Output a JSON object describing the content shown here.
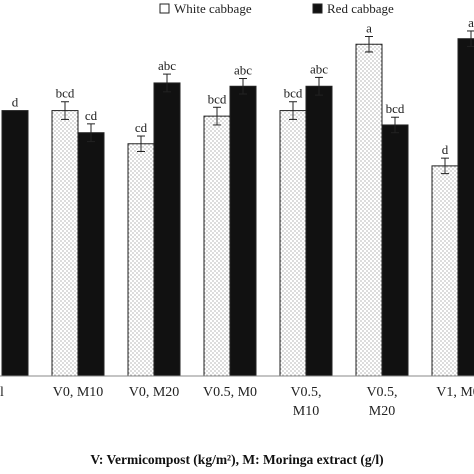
{
  "chart_data": {
    "type": "bar",
    "categories": [
      [
        "l"
      ],
      [
        "V0, M10"
      ],
      [
        "V0, M20"
      ],
      [
        "V0.5, M0"
      ],
      [
        "V0.5,",
        "M10"
      ],
      [
        "V0.5,",
        "M20"
      ],
      [
        "V1,   M0"
      ],
      [
        "V"
      ]
    ],
    "series": [
      {
        "name": "White cabbage",
        "values": [
          null,
          2.4,
          2.1,
          2.35,
          2.4,
          3.0,
          1.9,
          null
        ],
        "errors": [
          null,
          0.08,
          0.07,
          0.08,
          0.08,
          0.07,
          0.07,
          null
        ],
        "letters": [
          "",
          "bcd",
          "cd",
          "bcd",
          "bcd",
          "a",
          "d",
          ""
        ]
      },
      {
        "name": "Red cabbage",
        "values": [
          2.4,
          2.2,
          2.65,
          2.62,
          2.62,
          2.27,
          3.05,
          null
        ],
        "errors": [
          null,
          0.08,
          0.08,
          0.07,
          0.08,
          0.07,
          0.07,
          null
        ],
        "letters": [
          "d",
          "cd",
          "abc",
          "abc",
          "abc",
          "bcd",
          "a",
          ""
        ]
      }
    ],
    "ylim": [
      0,
      3.4
    ],
    "xlabel": "V: Vermicompost (kg/m²), M: Moringa extract (g/l)",
    "legend_position": "top-right",
    "grid": false
  },
  "colors": {
    "white_bar": "#ffffff",
    "red_bar": "#111111",
    "axis": "#888888"
  }
}
